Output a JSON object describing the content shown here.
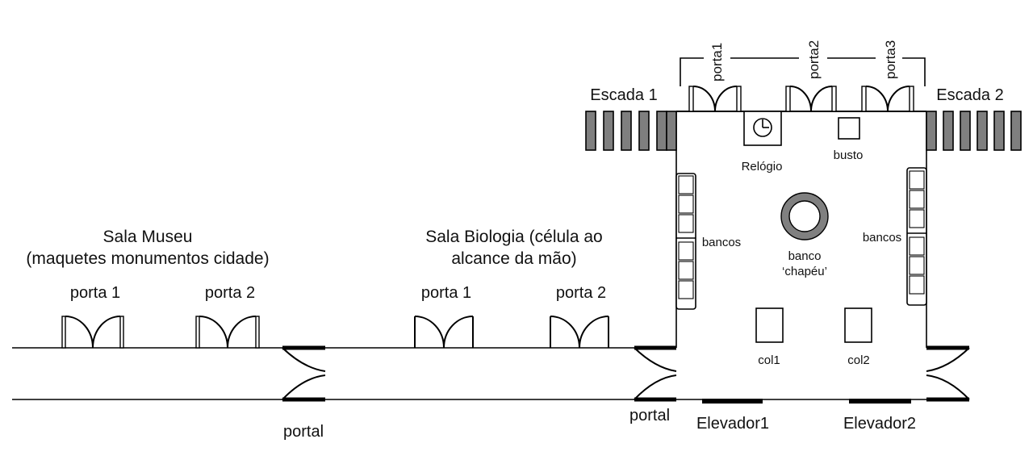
{
  "labels": {
    "sala_museu_title": "Sala Museu",
    "sala_museu_sub": "(maquetes monumentos cidade)",
    "sala_bio_title": "Sala Biologia (célula ao",
    "sala_bio_sub": "alcance da mão)",
    "porta_1": "porta 1",
    "porta_2": "porta 2",
    "portal": "portal",
    "escada_1": "Escada 1",
    "escada_2": "Escada 2",
    "porta1_top": "porta1",
    "porta2_top": "porta2",
    "porta3_top": "porta3",
    "relogio": "Relógio",
    "busto": "busto",
    "bancos": "bancos",
    "banco": "banco",
    "chapeu": "‘chapéu’",
    "col1": "col1",
    "col2": "col2",
    "elevador1": "Elevador1",
    "elevador2": "Elevador2"
  },
  "colors": {
    "line": "#000000",
    "stair_fill": "#7f7f7f",
    "ring_fill": "#808080"
  }
}
